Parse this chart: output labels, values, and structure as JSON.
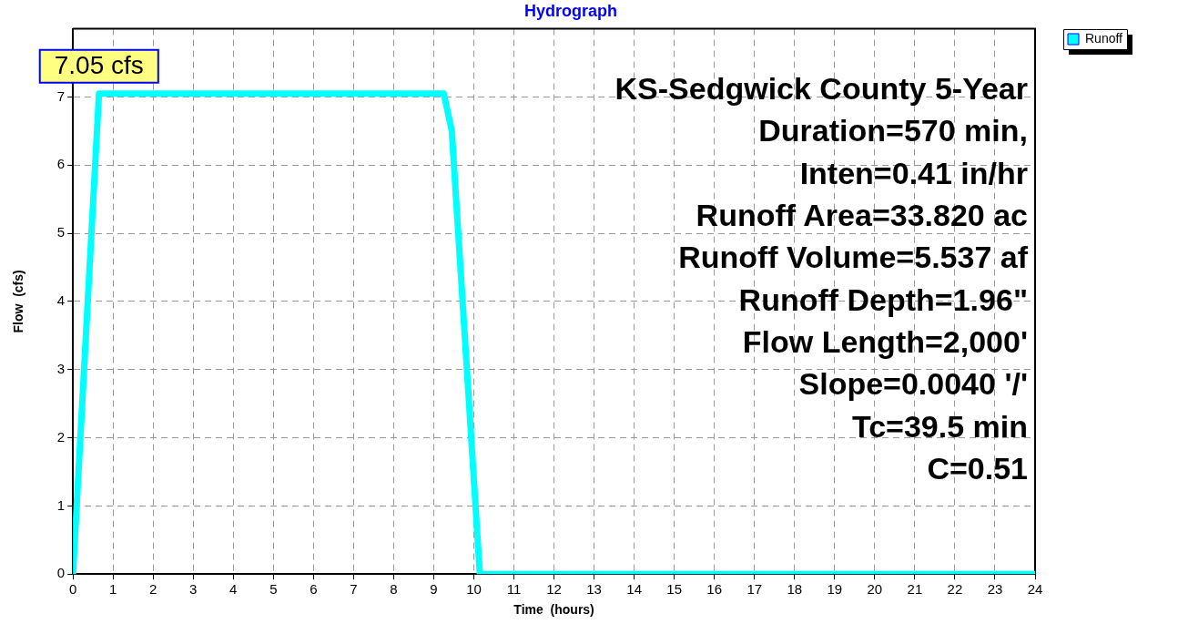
{
  "chart_data": {
    "type": "line",
    "title": "Hydrograph",
    "xlabel": "Time  (hours)",
    "ylabel": "Flow  (cfs)",
    "x": [
      0,
      0.65,
      9.25,
      9.45,
      10.15,
      24
    ],
    "series": [
      {
        "name": "Runoff",
        "color": "#00ffff",
        "values": [
          0,
          7.05,
          7.05,
          6.5,
          0,
          0
        ]
      }
    ],
    "xlim": [
      0,
      24
    ],
    "xticks": [
      0,
      1,
      2,
      3,
      4,
      5,
      6,
      7,
      8,
      9,
      10,
      11,
      12,
      13,
      14,
      15,
      16,
      17,
      18,
      19,
      20,
      21,
      22,
      23,
      24
    ],
    "ylim": [
      0,
      8
    ],
    "yticks": [
      0,
      1,
      2,
      3,
      4,
      5,
      6,
      7
    ],
    "grid": true,
    "legend": "top right",
    "marker": "none",
    "line_style": "solid",
    "annotations": [
      {
        "text": "7.05 cfs",
        "x": 0.65,
        "y": 7.05
      },
      "KS-Sedgwick County 5-Year",
      "Duration=570 min,",
      "Inten=0.41 in/hr",
      "Runoff Area=33.820 ac",
      "Runoff Volume=5.537 af",
      "Runoff Depth=1.96\"",
      "Flow Length=2,000'",
      "Slope=0.0040 '/'",
      "Tc=39.5 min",
      "C=0.51"
    ]
  }
}
